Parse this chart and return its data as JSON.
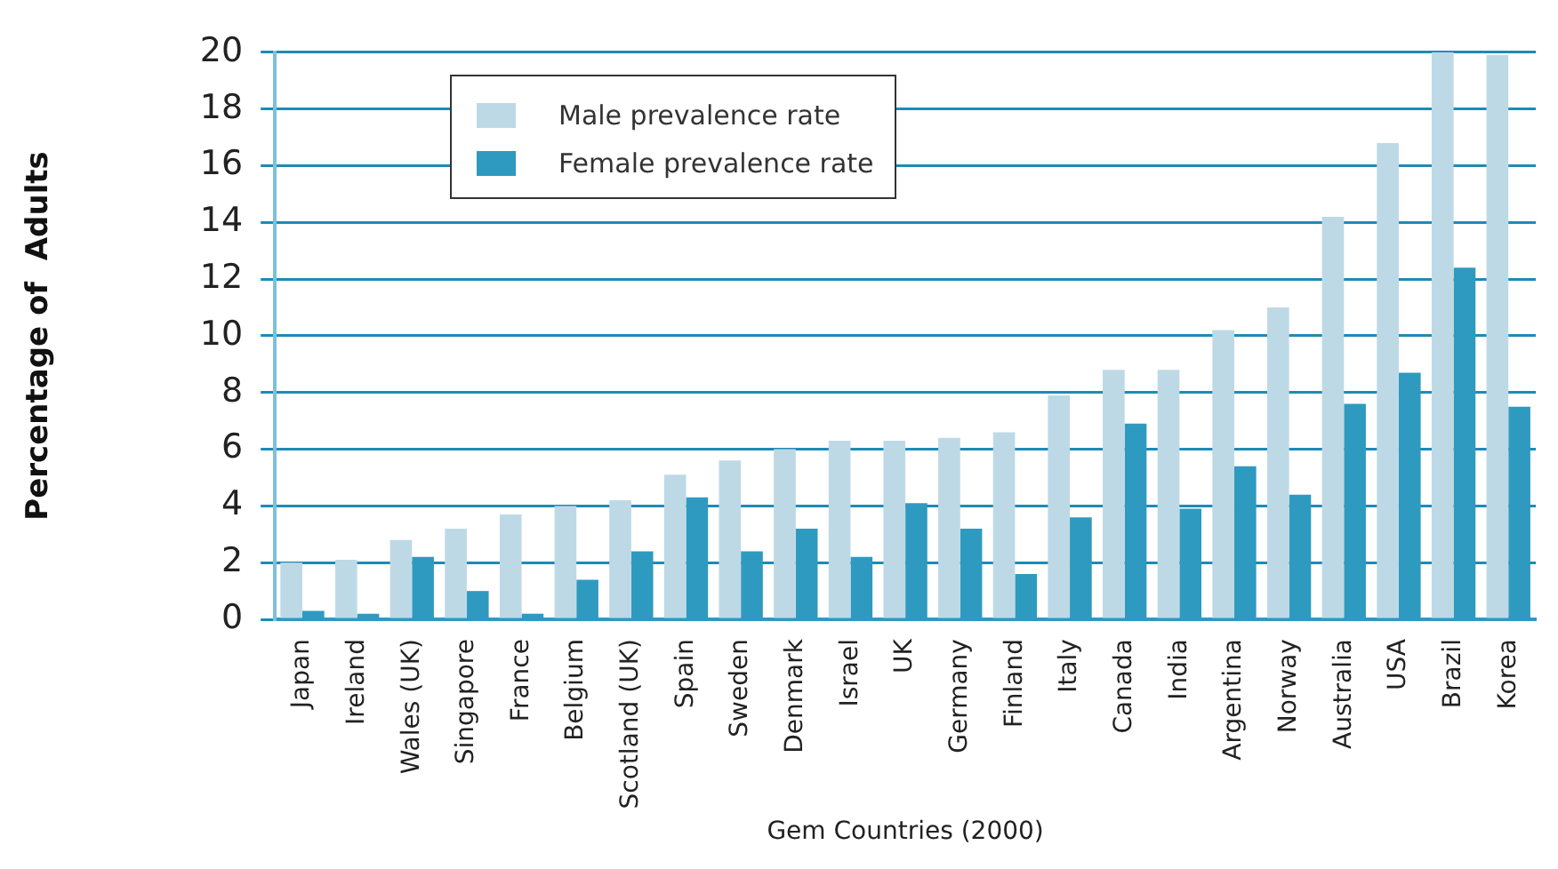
{
  "chart_data": {
    "type": "bar",
    "xlabel": "Gem Countries (2000)",
    "ylabel": "Percentage of  Adults",
    "categories": [
      "Japan",
      "Ireland",
      "Wales (UK)",
      "Singapore",
      "France",
      "Belgium",
      "Scotland (UK)",
      "Spain",
      "Sweden",
      "Denmark",
      "Israel",
      "UK",
      "Germany",
      "Finland",
      "Italy",
      "Canada",
      "India",
      "Argentina",
      "Norway",
      "Australia",
      "USA",
      "Brazil",
      "Korea"
    ],
    "series": [
      {
        "name": "Male prevalence rate",
        "color": "#bed9e6",
        "values": [
          2.0,
          2.1,
          2.8,
          3.2,
          3.7,
          4.0,
          4.2,
          5.1,
          5.6,
          6.0,
          6.3,
          6.3,
          6.4,
          6.6,
          7.9,
          8.8,
          8.8,
          10.2,
          11.0,
          14.2,
          16.8,
          20.0,
          19.9
        ]
      },
      {
        "name": "Female prevalence rate",
        "color": "#2f9abf",
        "values": [
          0.3,
          0.2,
          2.2,
          1.0,
          0.2,
          1.4,
          2.4,
          4.3,
          2.4,
          3.2,
          2.2,
          4.1,
          3.2,
          1.6,
          3.6,
          6.9,
          3.9,
          5.4,
          4.4,
          7.6,
          8.7,
          12.4,
          7.5
        ]
      }
    ],
    "ylim": [
      0,
      20
    ],
    "yticks": [
      0,
      2,
      4,
      6,
      8,
      10,
      12,
      14,
      16,
      18,
      20
    ],
    "grid": "y",
    "legend": "top left"
  }
}
